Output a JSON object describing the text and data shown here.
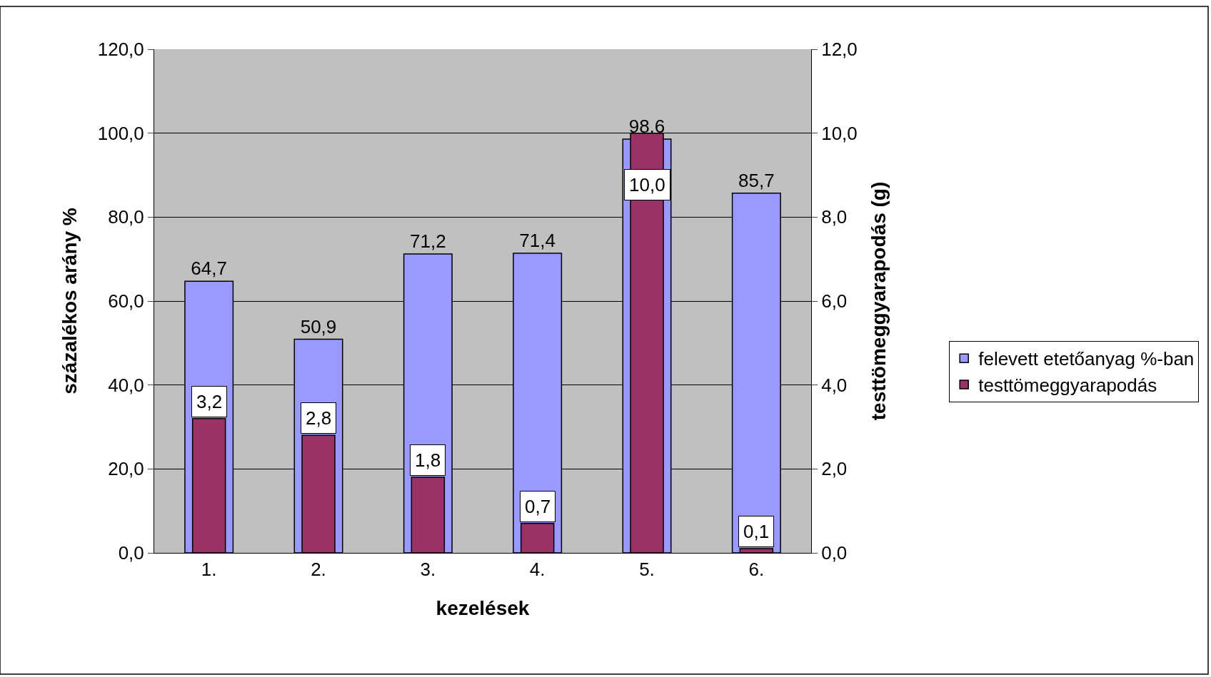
{
  "chart_data": {
    "type": "bar",
    "xlabel": "kezelések",
    "ylabel": "százalékos arány %",
    "y2label": "testtömeggyarapodás (g)",
    "categories": [
      "1.",
      "2.",
      "3.",
      "4.",
      "5.",
      "6."
    ],
    "series": [
      {
        "name": "felevett etetőanyag %-ban",
        "color": "#9999ff",
        "values": [
          64.7,
          50.9,
          71.2,
          71.4,
          98.6,
          85.7
        ],
        "value_labels": [
          "64,7",
          "50,9",
          "71,2",
          "71,4",
          "98,6",
          "85,7"
        ]
      },
      {
        "name": "testtömeggyarapodás",
        "color": "#993366",
        "axis": "y2",
        "values": [
          3.2,
          2.8,
          1.8,
          0.7,
          10.0,
          0.1
        ],
        "value_labels": [
          "3,2",
          "2,8",
          "1,8",
          "0,7",
          "10,0",
          "0,1"
        ]
      }
    ],
    "ylim": [
      0,
      120
    ],
    "yticks": [
      {
        "value": 0,
        "label": "0,0"
      },
      {
        "value": 20,
        "label": "20,0"
      },
      {
        "value": 40,
        "label": "40,0"
      },
      {
        "value": 60,
        "label": "60,0"
      },
      {
        "value": 80,
        "label": "80,0"
      },
      {
        "value": 100,
        "label": "100,0"
      },
      {
        "value": 120,
        "label": "120,0"
      }
    ],
    "y2lim": [
      0,
      12
    ],
    "y2ticks": [
      {
        "value": 0,
        "label": "0,0"
      },
      {
        "value": 2,
        "label": "2,0"
      },
      {
        "value": 4,
        "label": "4,0"
      },
      {
        "value": 6,
        "label": "6,0"
      },
      {
        "value": 8,
        "label": "8,0"
      },
      {
        "value": 10,
        "label": "10,0"
      },
      {
        "value": 12,
        "label": "12,0"
      }
    ],
    "grid": "y",
    "legend": "right"
  }
}
